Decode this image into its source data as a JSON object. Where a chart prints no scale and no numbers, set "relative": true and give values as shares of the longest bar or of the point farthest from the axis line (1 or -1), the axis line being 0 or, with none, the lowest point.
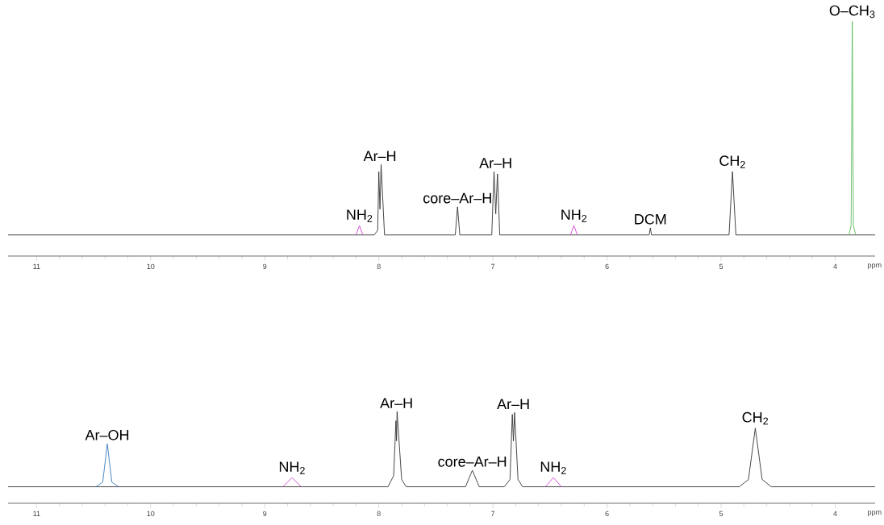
{
  "chart_data": [
    {
      "type": "line",
      "relative": true,
      "xlabel": "ppm",
      "xlim": [
        11.25,
        3.65
      ],
      "xticks": [
        11,
        10,
        9,
        8,
        7,
        6,
        5,
        4
      ],
      "tick_labels": "x",
      "series": [
        {
          "color": "#333333",
          "x": [
            11.25,
            8.04,
            8.01,
            8.0,
            7.99,
            7.98,
            7.95,
            7.33,
            7.31,
            7.29,
            7.01,
            6.99,
            6.975,
            6.96,
            6.94,
            5.63,
            5.62,
            5.61,
            4.93,
            4.9,
            4.87,
            3.65
          ],
          "values": [
            0.09,
            0.09,
            0.11,
            0.36,
            0.2,
            0.39,
            0.09,
            0.09,
            0.21,
            0.09,
            0.09,
            0.36,
            0.18,
            0.35,
            0.09,
            0.09,
            0.12,
            0.09,
            0.09,
            0.36,
            0.09,
            0.09
          ]
        },
        {
          "color": "#d040d0",
          "x": [
            8.2,
            8.17,
            8.14
          ],
          "values": [
            0.09,
            0.13,
            0.09
          ]
        },
        {
          "color": "#d040d0",
          "x": [
            6.32,
            6.29,
            6.26
          ],
          "values": [
            0.09,
            0.13,
            0.09
          ]
        },
        {
          "color": "#5cb85c",
          "x": [
            3.88,
            3.86,
            3.85,
            3.84,
            3.82
          ],
          "values": [
            0.09,
            0.13,
            1,
            0.13,
            0.09
          ]
        }
      ],
      "annotations": [
        {
          "text": "NH$_{2}$",
          "x": 8.17,
          "y": 0.13
        },
        {
          "text": "Ar–H",
          "x": 7.99,
          "y": 0.39
        },
        {
          "text": "core–Ar–H",
          "x": 7.31,
          "y": 0.21
        },
        {
          "text": "Ar–H",
          "x": 6.975,
          "y": 0.36
        },
        {
          "text": "NH$_{2}$",
          "x": 6.29,
          "y": 0.13
        },
        {
          "text": "DCM",
          "x": 5.62,
          "y": 0.12
        },
        {
          "text": "CH$_{2}$",
          "x": 4.9,
          "y": 0.36
        },
        {
          "text": "O–CH$_{3}$",
          "x": 3.85,
          "y": 1
        }
      ]
    },
    {
      "type": "line",
      "relative": true,
      "xlabel": "ppm",
      "xlim": [
        11.25,
        3.65
      ],
      "xticks": [
        11,
        10,
        9,
        8,
        7,
        6,
        5,
        4
      ],
      "tick_labels": "x",
      "series": [
        {
          "color": "#333333",
          "x": [
            11.25,
            7.92,
            7.87,
            7.85,
            7.845,
            7.84,
            7.8,
            7.76,
            7.24,
            7.18,
            7.12,
            6.9,
            6.85,
            6.83,
            6.82,
            6.81,
            6.78,
            6.74,
            4.84,
            4.76,
            4.7,
            4.64,
            4.56,
            3.65
          ],
          "values": [
            0.18,
            0.18,
            0.3,
            0.9,
            0.68,
            1,
            0.26,
            0.18,
            0.18,
            0.36,
            0.18,
            0.18,
            0.26,
            0.97,
            0.68,
            0.99,
            0.26,
            0.18,
            0.18,
            0.26,
            0.82,
            0.26,
            0.18,
            0.18
          ]
        },
        {
          "color": "#3a7bbf",
          "x": [
            10.48,
            10.42,
            10.38,
            10.34,
            10.28
          ],
          "values": [
            0.18,
            0.23,
            0.65,
            0.23,
            0.18
          ]
        },
        {
          "color": "#d040d0",
          "x": [
            8.84,
            8.76,
            8.68
          ],
          "values": [
            0.18,
            0.28,
            0.18
          ]
        },
        {
          "color": "#d040d0",
          "x": [
            6.54,
            6.47,
            6.4
          ],
          "values": [
            0.18,
            0.28,
            0.18
          ]
        }
      ],
      "annotations": [
        {
          "text": "Ar–OH",
          "x": 10.38,
          "y": 0.65
        },
        {
          "text": "NH$_{2}$",
          "x": 8.76,
          "y": 0.28
        },
        {
          "text": "Ar–H",
          "x": 7.845,
          "y": 1
        },
        {
          "text": "core–Ar–H",
          "x": 7.18,
          "y": 0.36
        },
        {
          "text": "Ar–H",
          "x": 6.82,
          "y": 0.99
        },
        {
          "text": "NH$_{2}$",
          "x": 6.47,
          "y": 0.28
        },
        {
          "text": "CH$_{2}$",
          "x": 4.7,
          "y": 0.82
        }
      ]
    }
  ]
}
